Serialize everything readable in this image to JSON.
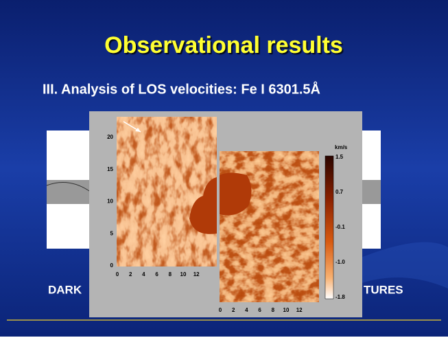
{
  "slide": {
    "title": "Observational results",
    "subtitle": "III. Analysis of LOS velocities:  Fe I 6301.5Å",
    "figure": {
      "left_map": {
        "yticks": [
          0,
          5,
          10,
          15,
          20
        ],
        "xticks": [
          0,
          2,
          4,
          6,
          8,
          10,
          12
        ]
      },
      "right_map": {
        "xticks": [
          0,
          2,
          4,
          6,
          8,
          10,
          12
        ]
      },
      "colorbar": {
        "unit": "km/s",
        "labels": [
          "1.5",
          "0.7",
          "-0.1",
          "-1.0",
          "-1.8"
        ]
      }
    },
    "bottom_text": [
      "DARK",
      "TURES"
    ]
  }
}
